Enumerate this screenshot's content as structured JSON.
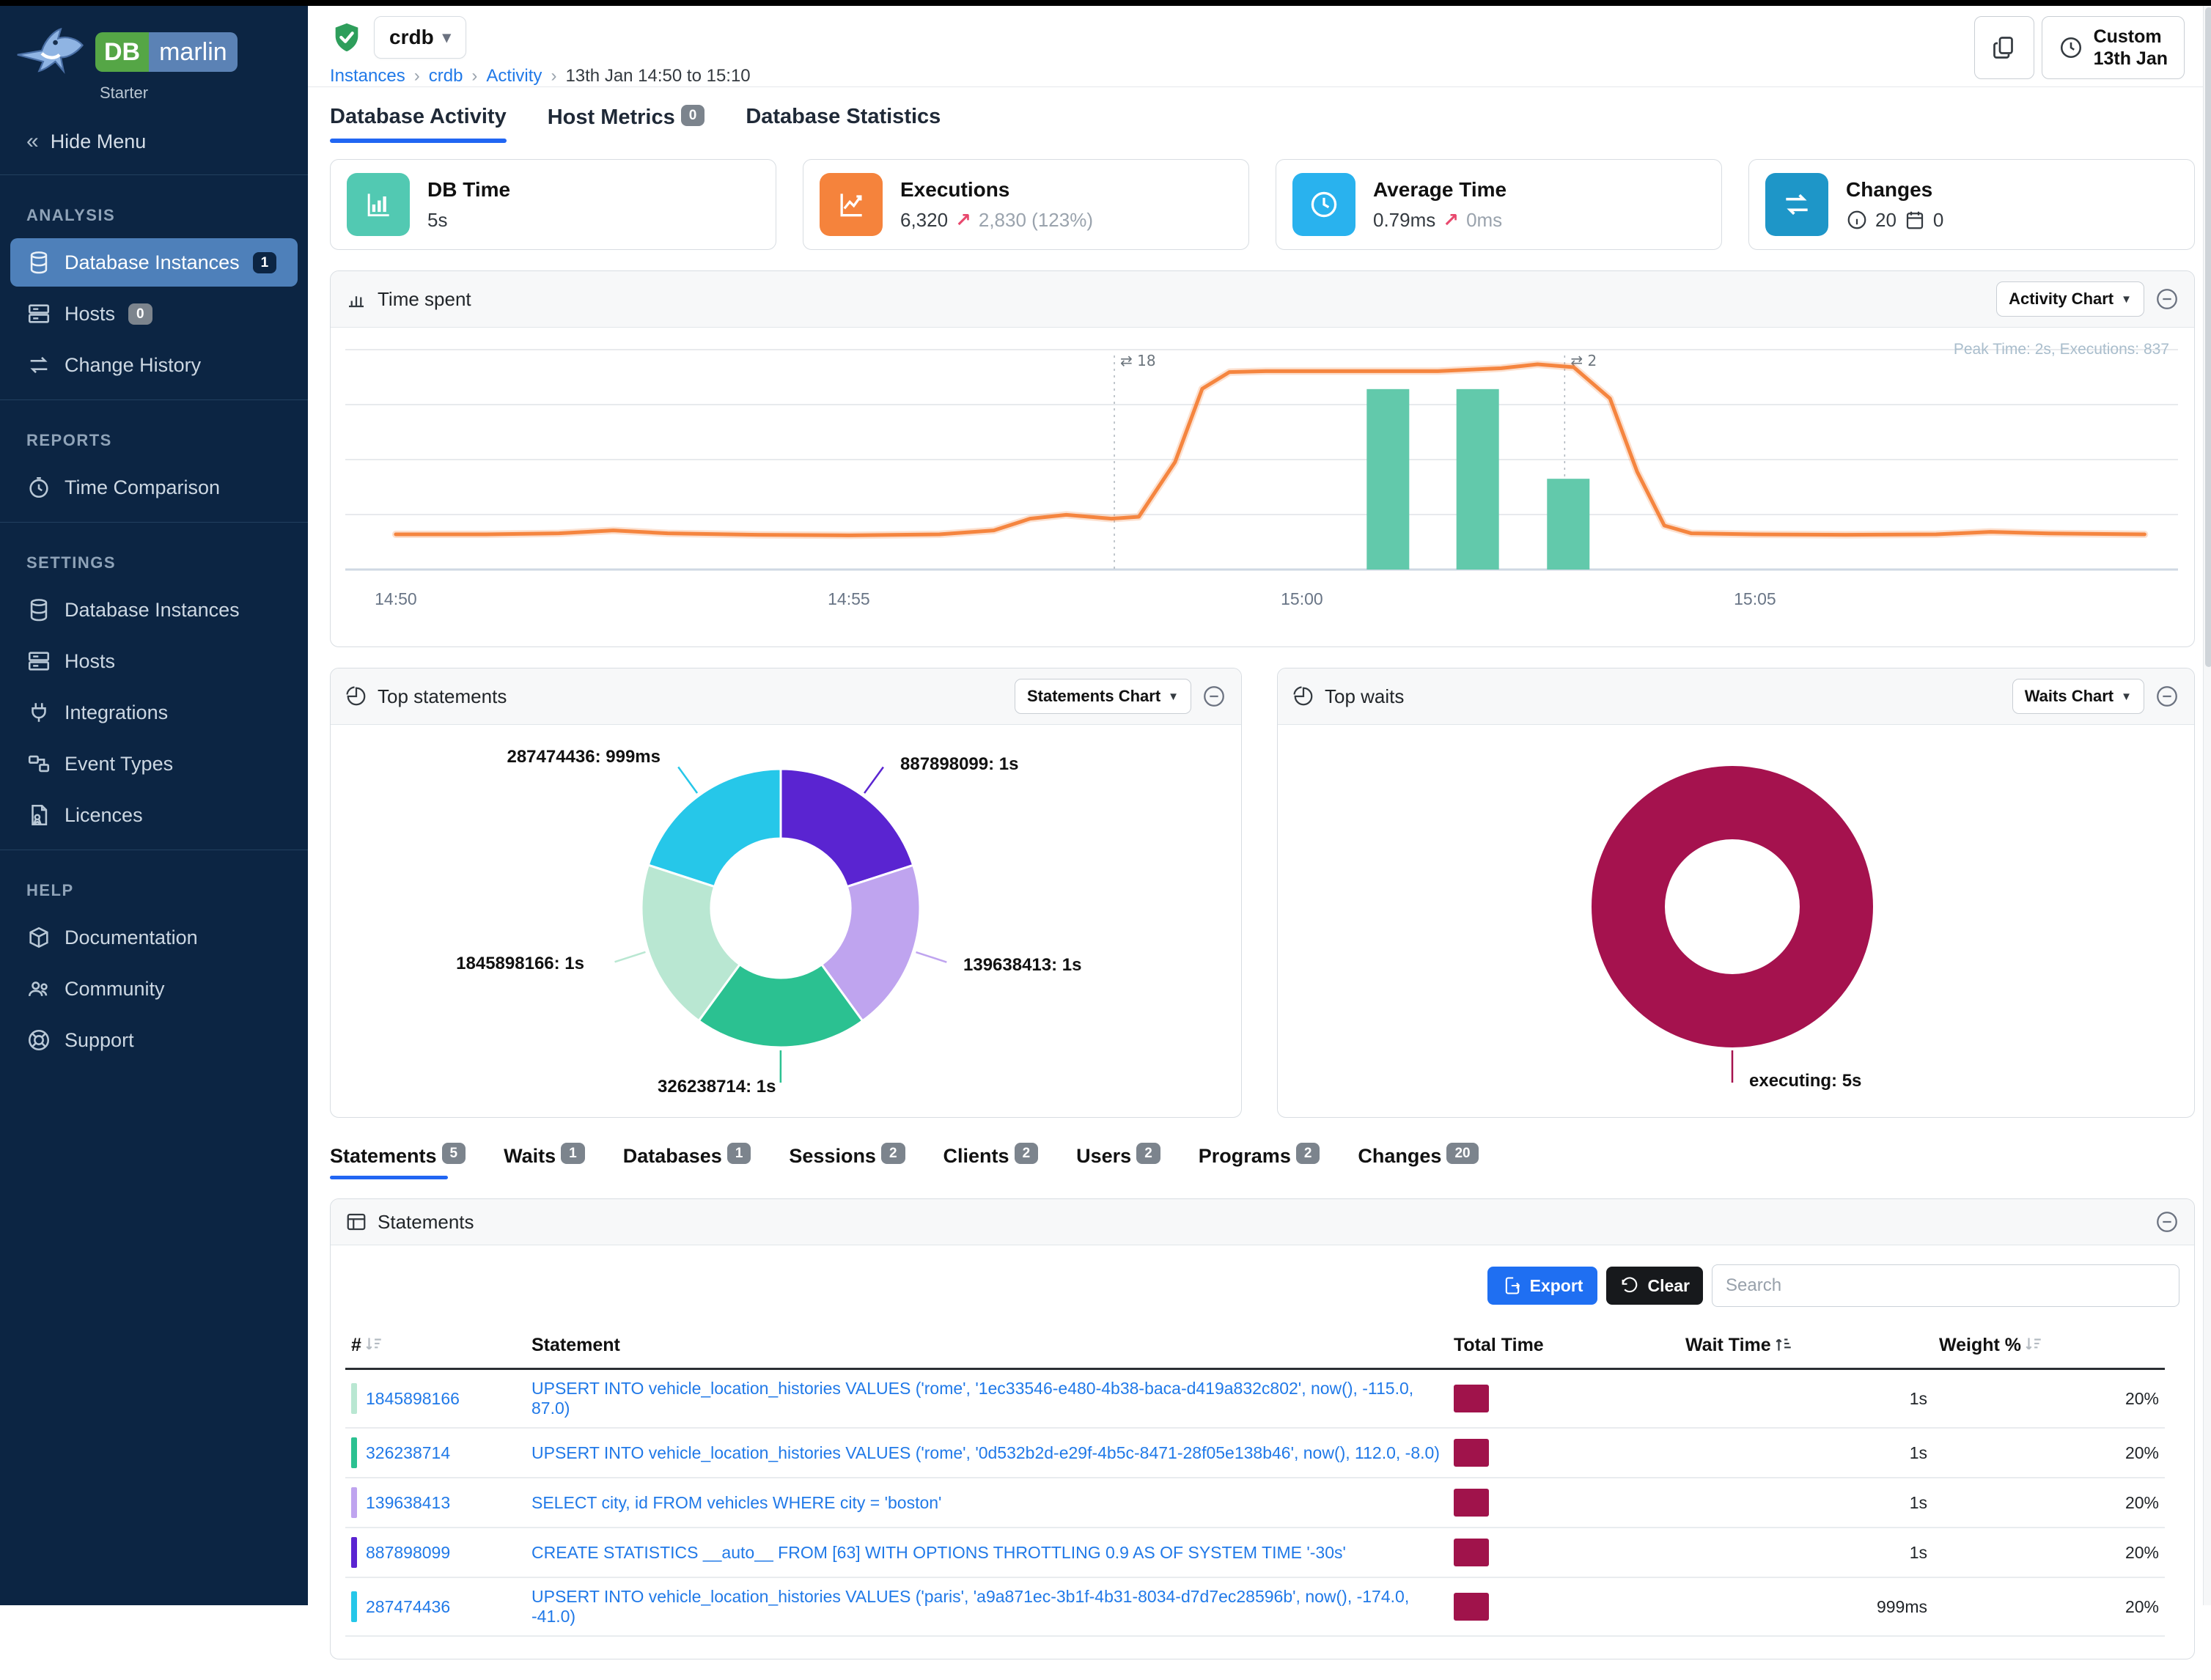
{
  "colors": {
    "accent_blue": "#2166f3",
    "link_blue": "#2079e8",
    "sidebar_bg": "#0c2543",
    "active_nav": "#4e80ba",
    "line_orange": "#f5853f",
    "bar_teal": "#62c9ab",
    "wait_maroon": "#a5124e",
    "seg_purple": "#5a24d1",
    "seg_lavender": "#bfa4ef",
    "seg_green": "#2bc191",
    "seg_mint": "#b9e7d2",
    "seg_cyan": "#26c7e9"
  },
  "app": {
    "brand_db": "DB",
    "brand_marlin": "marlin",
    "edition": "Starter"
  },
  "sidebar": {
    "hide_menu": "Hide Menu",
    "sections": [
      {
        "title": "ANALYSIS",
        "items": [
          {
            "label": "Database Instances",
            "badge": "1"
          },
          {
            "label": "Hosts",
            "badge": "0"
          },
          {
            "label": "Change History",
            "badge": ""
          }
        ]
      },
      {
        "title": "REPORTS",
        "items": [
          {
            "label": "Time Comparison",
            "badge": ""
          }
        ]
      },
      {
        "title": "SETTINGS",
        "items": [
          {
            "label": "Database Instances",
            "badge": ""
          },
          {
            "label": "Hosts",
            "badge": ""
          },
          {
            "label": "Integrations",
            "badge": ""
          },
          {
            "label": "Event Types",
            "badge": ""
          },
          {
            "label": "Licences",
            "badge": ""
          }
        ]
      },
      {
        "title": "HELP",
        "items": [
          {
            "label": "Documentation",
            "badge": ""
          },
          {
            "label": "Community",
            "badge": ""
          },
          {
            "label": "Support",
            "badge": ""
          }
        ]
      }
    ]
  },
  "topbar": {
    "instance": "crdb",
    "breadcrumb": {
      "items": [
        "Instances",
        "crdb",
        "Activity"
      ],
      "current": "13th Jan 14:50 to 15:10"
    },
    "custom_button": {
      "line1": "Custom",
      "line2": "13th Jan"
    }
  },
  "main_tabs": [
    {
      "label": "Database Activity",
      "badge": ""
    },
    {
      "label": "Host Metrics",
      "badge": "0"
    },
    {
      "label": "Database Statistics",
      "badge": ""
    }
  ],
  "cards": [
    {
      "title": "DB Time",
      "value": "5s",
      "delta": "",
      "icon_color": "#52c9b2"
    },
    {
      "title": "Executions",
      "value": "6,320",
      "arrow": "↗",
      "delta": "2,830 (123%)",
      "icon_color": "#f5833c"
    },
    {
      "title": "Average Time",
      "value": "0.79ms",
      "arrow": "↗",
      "delta": "0ms",
      "icon_color": "#29b2ee"
    },
    {
      "title": "Changes",
      "info_count": "20",
      "calendar_count": "0",
      "icon_color": "#1e96c8"
    }
  ],
  "time_spent": {
    "title": "Time spent",
    "control": "Activity Chart",
    "peak_note": "Peak Time: 2s, Executions: 837",
    "chart": {
      "type": "line+bar",
      "x_ticks": [
        {
          "t": 0,
          "label": "14:50"
        },
        {
          "t": 5,
          "label": "14:55"
        },
        {
          "t": 10,
          "label": "15:00"
        },
        {
          "t": 15,
          "label": "15:05"
        }
      ],
      "vmax": 2.25,
      "grid_values": [
        0.5625,
        1.125,
        1.6875,
        2.25
      ],
      "line": {
        "name": "DB Time (s)",
        "color": "#f5853f",
        "points": [
          [
            0,
            0.36
          ],
          [
            1,
            0.36
          ],
          [
            1.8,
            0.37
          ],
          [
            2.4,
            0.4
          ],
          [
            3,
            0.37
          ],
          [
            4,
            0.355
          ],
          [
            5,
            0.35
          ],
          [
            6,
            0.36
          ],
          [
            6.6,
            0.4
          ],
          [
            7,
            0.52
          ],
          [
            7.4,
            0.56
          ],
          [
            7.9,
            0.52
          ],
          [
            8.2,
            0.54
          ],
          [
            8.6,
            1.1
          ],
          [
            8.9,
            1.85
          ],
          [
            9.2,
            2.02
          ],
          [
            9.6,
            2.03
          ],
          [
            10.5,
            2.03
          ],
          [
            11.5,
            2.03
          ],
          [
            12.2,
            2.06
          ],
          [
            12.6,
            2.1
          ],
          [
            13,
            2.07
          ],
          [
            13.4,
            1.75
          ],
          [
            13.7,
            1.0
          ],
          [
            14,
            0.45
          ],
          [
            14.3,
            0.37
          ],
          [
            15,
            0.36
          ],
          [
            16,
            0.355
          ],
          [
            17,
            0.36
          ],
          [
            17.6,
            0.385
          ],
          [
            18.2,
            0.37
          ],
          [
            19.3,
            0.36
          ]
        ]
      },
      "bars": {
        "name": "Executions",
        "color": "#62c9ab",
        "vmax": 1020,
        "items": [
          {
            "t": 10.95,
            "v": 837
          },
          {
            "t": 11.94,
            "v": 837
          },
          {
            "t": 12.94,
            "v": 421
          }
        ]
      },
      "markers": [
        {
          "t": 7.93,
          "label": "18"
        },
        {
          "t": 12.9,
          "label": "2"
        }
      ]
    }
  },
  "top_statements": {
    "title": "Top statements",
    "control": "Statements Chart",
    "chart": {
      "type": "pie",
      "segments": [
        {
          "id": "887898099",
          "value": 1.0,
          "color": "#5a24d1"
        },
        {
          "id": "139638413",
          "value": 1.0,
          "color": "#bfa4ef"
        },
        {
          "id": "326238714",
          "value": 1.0,
          "color": "#2bc191"
        },
        {
          "id": "1845898166",
          "value": 1.0,
          "color": "#b9e7d2"
        },
        {
          "id": "287474436",
          "value": 0.999,
          "color": "#26c7e9"
        }
      ]
    },
    "labels": {
      "s287": "287474436: 999ms",
      "s887": "887898099: 1s",
      "s184": "1845898166: 1s",
      "s139": "139638413: 1s",
      "s326": "326238714: 1s"
    }
  },
  "top_waits": {
    "title": "Top waits",
    "control": "Waits Chart",
    "chart": {
      "type": "pie",
      "segments": [
        {
          "id": "executing",
          "value": 5.0,
          "color": "#a5124e"
        }
      ]
    },
    "label": "executing: 5s"
  },
  "sub_tabs": [
    {
      "label": "Statements",
      "badge": "5"
    },
    {
      "label": "Waits",
      "badge": "1"
    },
    {
      "label": "Databases",
      "badge": "1"
    },
    {
      "label": "Sessions",
      "badge": "2"
    },
    {
      "label": "Clients",
      "badge": "2"
    },
    {
      "label": "Users",
      "badge": "2"
    },
    {
      "label": "Programs",
      "badge": "2"
    },
    {
      "label": "Changes",
      "badge": "20"
    }
  ],
  "statements_table": {
    "title": "Statements",
    "export_label": "Export",
    "clear_label": "Clear",
    "search_placeholder": "Search",
    "columns": {
      "id": "#",
      "statement": "Statement",
      "total_time": "Total Time",
      "wait_time": "Wait Time",
      "weight": "Weight %"
    },
    "rows": [
      {
        "id": "1845898166",
        "color": "#b9e7d2",
        "statement": "UPSERT INTO vehicle_location_histories VALUES ('rome', '1ec33546-e480-4b38-baca-d419a832c802', now(), -115.0, 87.0)",
        "wait_time": "1s",
        "weight": "20%"
      },
      {
        "id": "326238714",
        "color": "#2bc191",
        "statement": "UPSERT INTO vehicle_location_histories VALUES ('rome', '0d532b2d-e29f-4b5c-8471-28f05e138b46', now(), 112.0, -8.0)",
        "wait_time": "1s",
        "weight": "20%"
      },
      {
        "id": "139638413",
        "color": "#bfa4ef",
        "statement": "SELECT city, id FROM vehicles WHERE city = 'boston'",
        "wait_time": "1s",
        "weight": "20%"
      },
      {
        "id": "887898099",
        "color": "#5a24d1",
        "statement": "CREATE STATISTICS __auto__ FROM [63] WITH OPTIONS THROTTLING 0.9 AS OF SYSTEM TIME '-30s'",
        "wait_time": "1s",
        "weight": "20%"
      },
      {
        "id": "287474436",
        "color": "#26c7e9",
        "statement": "UPSERT INTO vehicle_location_histories VALUES ('paris', 'a9a871ec-3b1f-4b31-8034-d7d7ec28596b', now(), -174.0, -41.0)",
        "wait_time": "999ms",
        "weight": "20%"
      }
    ]
  }
}
